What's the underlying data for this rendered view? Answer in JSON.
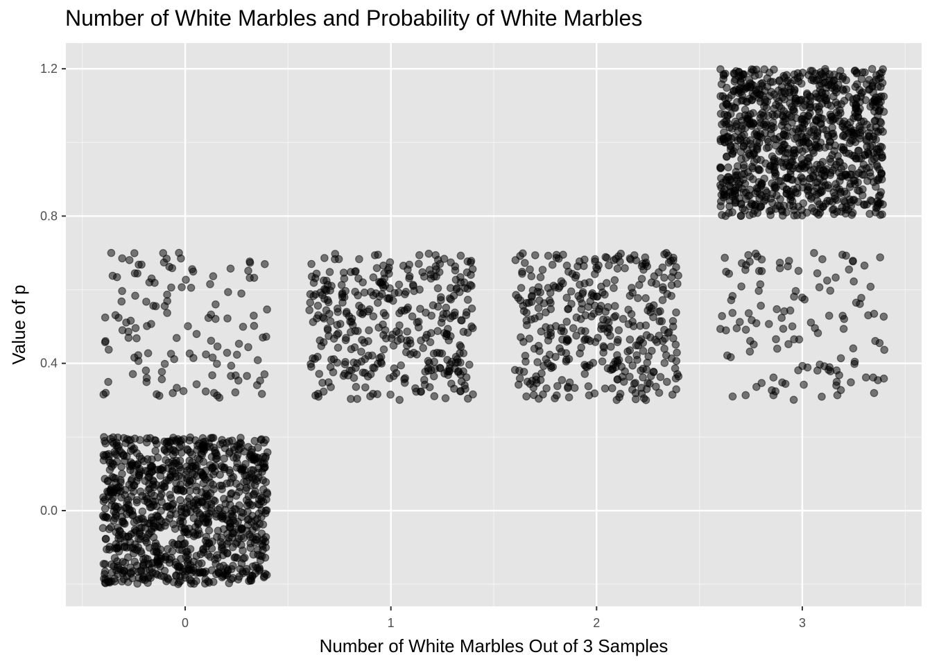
{
  "chart_data": {
    "type": "scatter",
    "title": "Number of White Marbles and Probability of White Marbles",
    "xlabel": "Number of White Marbles Out of 3 Samples",
    "ylabel": "Value of p",
    "x_ticks": [
      0,
      1,
      2,
      3
    ],
    "y_ticks": [
      0.0,
      0.4,
      0.8,
      1.2
    ],
    "y_tick_labels": [
      "0.0",
      "0.4",
      "0.8",
      "1.2"
    ],
    "xlim": [
      -0.58,
      3.58
    ],
    "ylim": [
      -0.26,
      1.27
    ],
    "grid": true,
    "point_color": "#000000",
    "point_opacity": 0.5,
    "jitter_width": 0.4,
    "groups": [
      {
        "x": 0,
        "p": 0.0,
        "count": 1000
      },
      {
        "x": 0,
        "p": 0.5,
        "count": 125
      },
      {
        "x": 1,
        "p": 0.5,
        "count": 375
      },
      {
        "x": 2,
        "p": 0.5,
        "count": 375
      },
      {
        "x": 3,
        "p": 0.5,
        "count": 125
      },
      {
        "x": 3,
        "p": 1.0,
        "count": 1000
      }
    ],
    "jitter_height": {
      "0": 0.2,
      "0.5": 0.2,
      "1": 0.2
    }
  },
  "colors": {
    "panel_background": "#e5e5e5",
    "grid_major": "#ffffff",
    "grid_minor": "#f2f2f2",
    "tick_mark": "#333333"
  }
}
